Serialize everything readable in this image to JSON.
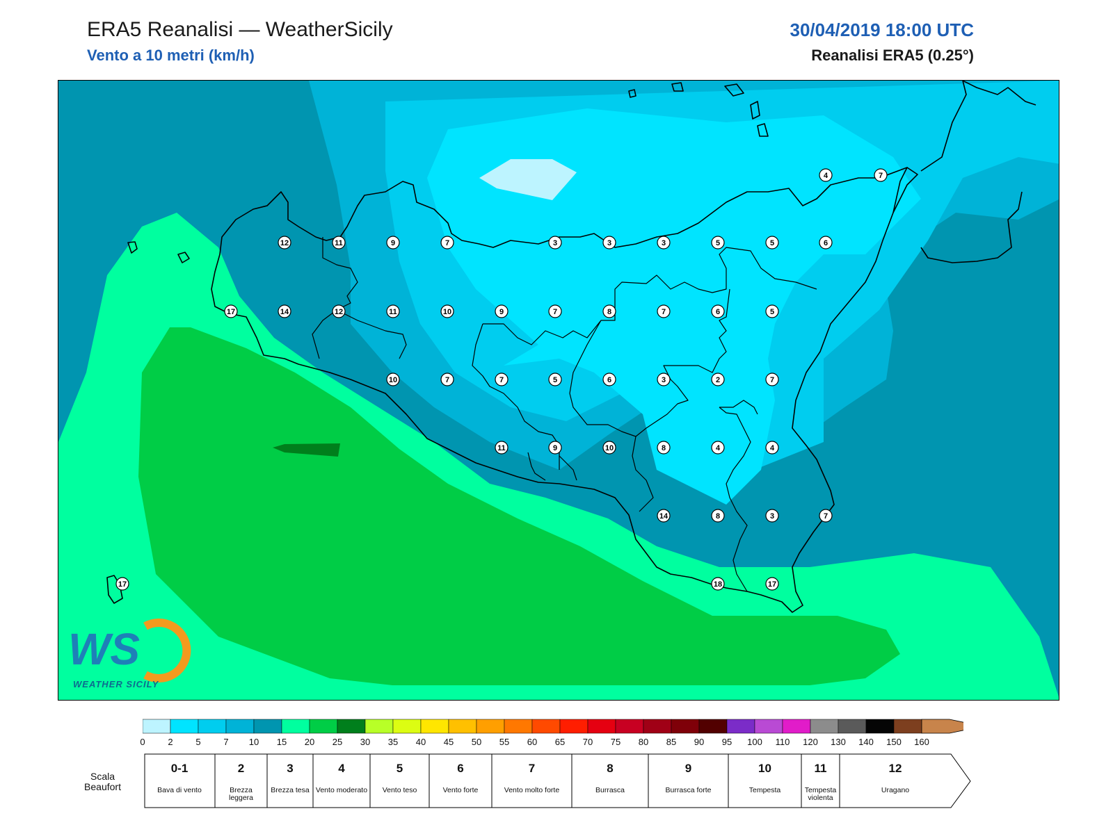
{
  "header": {
    "title": "ERA5 Reanalisi — WeatherSicily",
    "subtitle": "Vento a 10 metri (km/h)",
    "datetime": "30/04/2019 18:00 UTC",
    "source": "Reanalisi ERA5 (0.25°)"
  },
  "logo": {
    "text": "WEATHER SICILY",
    "mark": "WS"
  },
  "colorbar": {
    "ticks": [
      "0",
      "2",
      "5",
      "7",
      "10",
      "15",
      "20",
      "25",
      "30",
      "35",
      "40",
      "45",
      "50",
      "55",
      "60",
      "65",
      "70",
      "75",
      "80",
      "85",
      "90",
      "95",
      "100",
      "110",
      "120",
      "130",
      "140",
      "150",
      "160"
    ],
    "colors": [
      "#bdf4ff",
      "#00e4ff",
      "#00cdef",
      "#00b3d7",
      "#0095b0",
      "#00ff9f",
      "#00cd46",
      "#007f1c",
      "#b8ff27",
      "#dcfd12",
      "#ffe600",
      "#ffc000",
      "#ff9f00",
      "#ff7800",
      "#ff4a00",
      "#ff1e00",
      "#e50011",
      "#c80022",
      "#a00016",
      "#7f0009",
      "#520000",
      "#7b2cc8",
      "#b94ad4",
      "#e11cc9",
      "#8c8c8c",
      "#5a5a5a",
      "#050505",
      "#7d3f1f",
      "#c8844b"
    ]
  },
  "beaufort": {
    "label": "Scala Beaufort",
    "levels": [
      {
        "force": "0-1",
        "name": "Bava di vento"
      },
      {
        "force": "2",
        "name": "Brezza leggera"
      },
      {
        "force": "3",
        "name": "Brezza tesa"
      },
      {
        "force": "4",
        "name": "Vento moderato"
      },
      {
        "force": "5",
        "name": "Vento teso"
      },
      {
        "force": "6",
        "name": "Vento forte"
      },
      {
        "force": "7",
        "name": "Vento molto forte"
      },
      {
        "force": "8",
        "name": "Burrasca"
      },
      {
        "force": "9",
        "name": "Burrasca forte"
      },
      {
        "force": "10",
        "name": "Tempesta"
      },
      {
        "force": "11",
        "name": "Tempesta violenta"
      },
      {
        "force": "12",
        "name": "Uragano"
      }
    ]
  },
  "stations": [
    "12",
    "11",
    "9",
    "7",
    "3",
    "3",
    "3",
    "5",
    "5",
    "6",
    "4",
    "7",
    "17",
    "14",
    "12",
    "11",
    "10",
    "9",
    "7",
    "8",
    "7",
    "6",
    "5",
    "10",
    "7",
    "7",
    "5",
    "6",
    "3",
    "2",
    "7",
    "11",
    "9",
    "10",
    "8",
    "4",
    "4",
    "14",
    "8",
    "3",
    "7",
    "18",
    "17",
    "17"
  ]
}
